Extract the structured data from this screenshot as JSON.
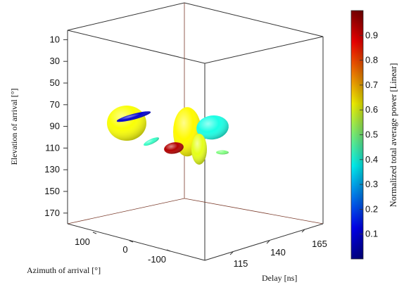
{
  "chart_data": {
    "type": "scatter",
    "subtype": "3d-isosurface",
    "xlabel": "Azimuth of arrival [°]",
    "ylabel": "Delay [ns]",
    "zlabel": "Elevation of arrival [°]",
    "colorbar_label": "Normalized total average power [Linear]",
    "colormap": "jet",
    "clim": [
      0,
      1
    ],
    "azimuth_ticks": [
      "100",
      "0",
      "-100"
    ],
    "delay_ticks": [
      "115",
      "140",
      "165"
    ],
    "elevation_ticks": [
      "10",
      "30",
      "50",
      "70",
      "90",
      "110",
      "130",
      "150",
      "170"
    ],
    "colorbar_ticks": [
      "0.1",
      "0.2",
      "0.3",
      "0.4",
      "0.5",
      "0.6",
      "0.7",
      "0.8",
      "0.9"
    ],
    "elevation_range": [
      0,
      180
    ],
    "grid": false,
    "clusters": [
      {
        "elevation": 87,
        "power": 0.62
      },
      {
        "elevation": 81,
        "power": 0.08
      },
      {
        "elevation": 95,
        "power": 0.63
      },
      {
        "elevation": 91,
        "power": 0.4
      },
      {
        "elevation": 104,
        "power": 0.43
      },
      {
        "elevation": 111,
        "power": 0.6
      },
      {
        "elevation": 110,
        "power": 0.95
      },
      {
        "elevation": 114,
        "power": 0.5
      }
    ]
  }
}
